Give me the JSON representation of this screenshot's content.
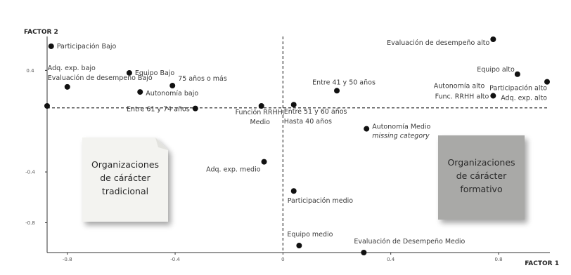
{
  "chart_data": {
    "type": "scatter",
    "xlabel": "FACTOR 1",
    "ylabel": "FACTOR 2",
    "xlim": [
      -0.875,
      0.98
    ],
    "ylim": [
      -1.035,
      0.645
    ],
    "x_ticks": [
      {
        "v": -0.8,
        "label": "-0.8"
      },
      {
        "v": -0.4,
        "label": "-0.4"
      },
      {
        "v": 0.0,
        "label": "0"
      },
      {
        "v": 0.4,
        "label": "0.4"
      },
      {
        "v": 0.8,
        "label": "0.8"
      }
    ],
    "y_ticks": [
      {
        "v": 0.4,
        "label": "0.4"
      },
      {
        "v": -0.4,
        "label": "-0.4"
      },
      {
        "v": -0.8,
        "label": "-0.8"
      }
    ],
    "points": [
      {
        "name": "p-participacion-bajo",
        "x": -0.86,
        "y": 0.59,
        "label_lines": [
          {
            "text": "Participación Bajo",
            "anchor": "start",
            "dx": 8,
            "dy": 3
          }
        ]
      },
      {
        "name": "p-equipo-bajo",
        "x": -0.57,
        "y": 0.38,
        "label_lines": [
          {
            "text": "Equipo Bajo",
            "anchor": "start",
            "dx": 8,
            "dy": 3
          }
        ]
      },
      {
        "name": "p-adq-evaluacion-bajo",
        "x": -0.8,
        "y": 0.27,
        "label_lines": [
          {
            "text": "Adq. exp. bajo",
            "anchor": "start",
            "dx": -28,
            "dy": -24
          },
          {
            "text": "Evaluación de desempeño Bajo",
            "anchor": "start",
            "dx": -28,
            "dy": -10
          }
        ]
      },
      {
        "name": "p-75-anos",
        "x": -0.41,
        "y": 0.28,
        "label_lines": [
          {
            "text": "75 años o más",
            "anchor": "start",
            "dx": 8,
            "dy": -7
          }
        ]
      },
      {
        "name": "p-autonomia-bajo",
        "x": -0.53,
        "y": 0.23,
        "label_lines": [
          {
            "text": "Autonomía bajo",
            "anchor": "start",
            "dx": 8,
            "dy": 5
          }
        ]
      },
      {
        "name": "p-left-edge",
        "x": -0.875,
        "y": 0.12,
        "label_lines": []
      },
      {
        "name": "p-61-74-anos",
        "x": -0.325,
        "y": 0.1,
        "label_lines": [
          {
            "text": "Entre 61 y 74 años",
            "anchor": "end",
            "dx": -8,
            "dy": 4
          }
        ]
      },
      {
        "name": "p-funcion-rrhh-medio",
        "x": -0.08,
        "y": 0.12,
        "label_lines": [
          {
            "text": "Función RRHH,",
            "anchor": "middle",
            "dx": -2,
            "dy": 12
          },
          {
            "text": "Medio",
            "anchor": "middle",
            "dx": -2,
            "dy": 26
          }
        ]
      },
      {
        "name": "p-51-60-hasta-40",
        "x": 0.04,
        "y": 0.13,
        "label_lines": [
          {
            "text": "Entre 51 y 60 años",
            "anchor": "start",
            "dx": -14,
            "dy": 13
          },
          {
            "text": "Hasta 40 años",
            "anchor": "start",
            "dx": -14,
            "dy": 27
          }
        ]
      },
      {
        "name": "p-adq-exp-medio",
        "x": -0.07,
        "y": -0.32,
        "label_lines": [
          {
            "text": "Adq. exp. medio",
            "anchor": "end",
            "dx": -5,
            "dy": 14
          }
        ]
      },
      {
        "name": "p-41-50-anos",
        "x": 0.2,
        "y": 0.24,
        "label_lines": [
          {
            "text": "Entre 41 y 50 años",
            "anchor": "middle",
            "dx": 10,
            "dy": -9
          }
        ]
      },
      {
        "name": "p-autonomia-medio",
        "x": 0.31,
        "y": -0.06,
        "label_lines": [
          {
            "text": "Autonomía Medio",
            "anchor": "start",
            "dx": 8,
            "dy": 0
          }
        ]
      },
      {
        "name": "p-missing-category",
        "x": 0.31,
        "y": -0.06,
        "italic": true,
        "label_lines": [
          {
            "text": "missing category",
            "anchor": "start",
            "dx": 8,
            "dy": 13
          }
        ]
      },
      {
        "name": "p-participacion-medio",
        "x": 0.04,
        "y": -0.55,
        "label_lines": [
          {
            "text": "Participación medio",
            "anchor": "start",
            "dx": -9,
            "dy": 17
          }
        ]
      },
      {
        "name": "p-equipo-medio",
        "x": 0.06,
        "y": -0.98,
        "label_lines": [
          {
            "text": "Equipo medio",
            "anchor": "start",
            "dx": -17,
            "dy": -13
          }
        ]
      },
      {
        "name": "p-evaluacion-desempeno-medio",
        "x": 0.3,
        "y": -1.035,
        "label_lines": [
          {
            "text": "Evaluación de Desempeño Medio",
            "anchor": "start",
            "dx": -14,
            "dy": -13
          }
        ]
      },
      {
        "name": "p-evaluacion-desempeno-alto",
        "x": 0.78,
        "y": 0.645,
        "label_lines": [
          {
            "text": "Evaluación de desempeño alto",
            "anchor": "end",
            "dx": -5,
            "dy": 8
          }
        ]
      },
      {
        "name": "p-equipo-alto",
        "x": 0.87,
        "y": 0.37,
        "label_lines": [
          {
            "text": "Equipo alto",
            "anchor": "end",
            "dx": -4,
            "dy": -4
          }
        ]
      },
      {
        "name": "p-participacion-adq-alto",
        "x": 0.98,
        "y": 0.31,
        "label_lines": [
          {
            "text": "Participación alto",
            "anchor": "end",
            "dx": 0,
            "dy": 12
          },
          {
            "text": "Adq. exp. alto",
            "anchor": "end",
            "dx": 0,
            "dy": 26
          }
        ]
      },
      {
        "name": "p-autonomia-funcion-alto",
        "x": 0.78,
        "y": 0.2,
        "label_lines": [
          {
            "text": "Autonomía alto",
            "anchor": "end",
            "dx": -12,
            "dy": -11
          },
          {
            "text": "Func. RRHH alto",
            "anchor": "end",
            "dx": -6,
            "dy": 4
          }
        ]
      }
    ],
    "notes": [
      {
        "name": "note-organizaciones-tradicional",
        "lines": [
          "Organizaciones",
          "de cárácter",
          "tradicional"
        ],
        "fill": "#f3f3f0",
        "text_color": "#2a2a2a"
      },
      {
        "name": "note-organizaciones-formativo",
        "lines": [
          "Organizaciones",
          "de cárácter",
          "formativo"
        ],
        "fill": "#a9a9a7",
        "text_color": "#3a3a3a"
      }
    ],
    "colors": {
      "point": "#111111",
      "axis": "#333333",
      "dashed": "#333333",
      "text": "#3a3a3a"
    }
  }
}
